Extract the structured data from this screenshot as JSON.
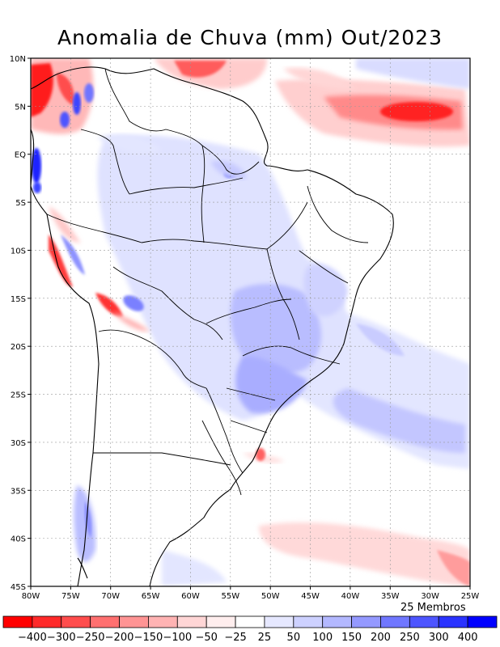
{
  "title": "Anomalia de Chuva (mm) Out/2023",
  "members_label": "25 Membros",
  "map": {
    "lon_range": [
      -80,
      -25
    ],
    "lat_range": [
      -45,
      10
    ],
    "lon_ticks": [
      "80W",
      "75W",
      "70W",
      "65W",
      "60W",
      "55W",
      "50W",
      "45W",
      "40W",
      "35W",
      "30W",
      "25W"
    ],
    "lat_ticks": [
      "10N",
      "5N",
      "EQ",
      "5S",
      "10S",
      "15S",
      "20S",
      "25S",
      "30S",
      "35S",
      "40S",
      "45S"
    ],
    "grid": true
  },
  "colorbar": {
    "labels": [
      "-400",
      "-300",
      "-250",
      "-200",
      "-150",
      "-100",
      "-50",
      "-25",
      "25",
      "50",
      "100",
      "150",
      "200",
      "250",
      "300",
      "400"
    ],
    "colors": [
      "#ff0000",
      "#ff2a2a",
      "#ff4d4d",
      "#ff7070",
      "#ff9494",
      "#ffb3b3",
      "#ffd6d6",
      "#ffeeee",
      "#ffffff",
      "#e6e8ff",
      "#cdd1ff",
      "#b3b8ff",
      "#9499ff",
      "#7077ff",
      "#4d55ff",
      "#2a33ff",
      "#0000ff"
    ]
  },
  "regions": [
    {
      "name": "northwest-andes-positive",
      "color": "#3a44ff"
    },
    {
      "name": "north-coast-negative",
      "color": "#ff3b3b"
    },
    {
      "name": "atlantic-itcz-negative",
      "color": "#ff2020"
    },
    {
      "name": "central-brazil-positive",
      "color": "#b9bdff"
    },
    {
      "name": "southeast-brazil-positive",
      "color": "#a9adff"
    },
    {
      "name": "south-atlantic-positive",
      "color": "#c3c6ff"
    },
    {
      "name": "southern-ocean-negative",
      "color": "#ffd4d4"
    }
  ]
}
